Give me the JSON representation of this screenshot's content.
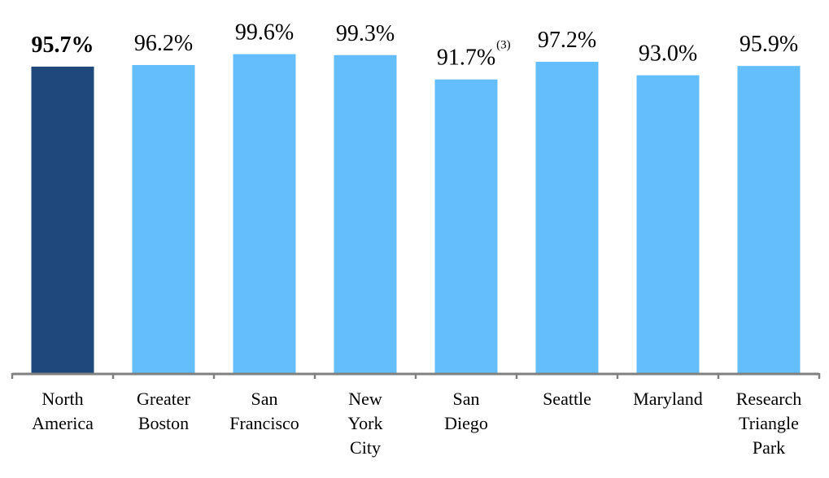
{
  "chart_data": {
    "type": "bar",
    "categories": [
      [
        "North",
        "America"
      ],
      [
        "Greater",
        "Boston"
      ],
      [
        "San",
        "Francisco"
      ],
      [
        "New",
        "York",
        "City"
      ],
      [
        "San",
        "Diego"
      ],
      [
        "Seattle"
      ],
      [
        "Maryland"
      ],
      [
        "Research",
        "Triangle",
        "Park"
      ]
    ],
    "values": [
      95.7,
      96.2,
      99.6,
      99.3,
      91.7,
      97.2,
      93.0,
      95.9
    ],
    "value_labels": [
      "95.7%",
      "96.2%",
      "99.6%",
      "99.3%",
      "91.7%",
      "97.2%",
      "93.0%",
      "95.9%"
    ],
    "label_notes": [
      "",
      "",
      "",
      "",
      "(3)",
      "",
      "",
      ""
    ],
    "bold_labels": [
      true,
      false,
      false,
      false,
      false,
      false,
      false,
      false
    ],
    "bar_colors": [
      "#1F497D",
      "#63BEFB",
      "#63BEFB",
      "#63BEFB",
      "#63BEFB",
      "#63BEFB",
      "#63BEFB",
      "#63BEFB"
    ],
    "axis_color": "#808080",
    "ylim": [
      0,
      100
    ],
    "title": "",
    "xlabel": "",
    "ylabel": "",
    "grid": false,
    "legend": "none"
  }
}
